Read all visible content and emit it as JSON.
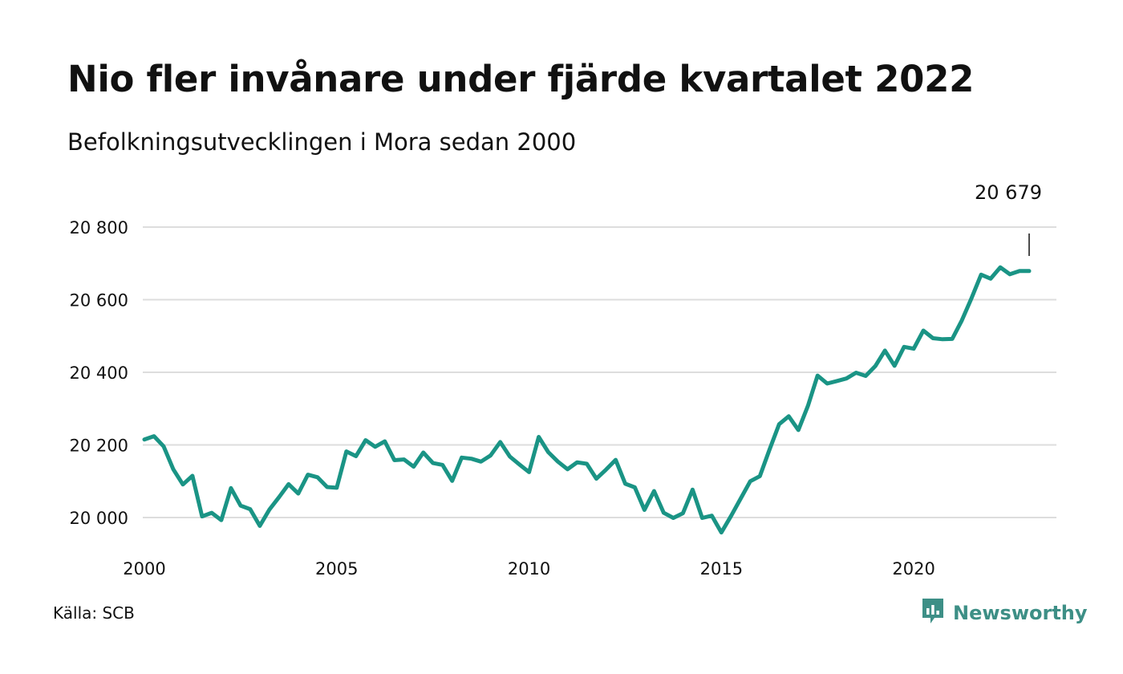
{
  "header": {
    "title": "Nio fler invånare under fjärde kvartalet 2022",
    "subtitle": "Befolkningsutvecklingen i Mora sedan 2000"
  },
  "footer": {
    "source": "Källa: SCB",
    "brand": "Newsworthy"
  },
  "colors": {
    "line": "#1a9485",
    "grid": "#dddddd",
    "brand": "#3d8f86"
  },
  "icons": {
    "brand_logo": "bar-chart-speech-bubble-icon"
  },
  "chart_data": {
    "type": "line",
    "title": "Nio fler invånare under fjärde kvartalet 2022",
    "subtitle": "Befolkningsutvecklingen i Mora sedan 2000",
    "xlabel": "",
    "ylabel": "",
    "xlim": [
      2000,
      2023.75
    ],
    "ylim": [
      19920,
      20800
    ],
    "grid": true,
    "x_ticks": [
      2000,
      2005,
      2010,
      2015,
      2020
    ],
    "x_tick_labels": [
      "2000",
      "2005",
      "2010",
      "2015",
      "2020"
    ],
    "y_ticks": [
      20000,
      20200,
      20400,
      20600,
      20800
    ],
    "y_tick_labels": [
      "20 000",
      "20 200",
      "20 400",
      "20 600",
      "20 800"
    ],
    "annotation": {
      "x": 2023,
      "value": 20679,
      "label": "20 679"
    },
    "series": [
      {
        "x": [
          2000.0,
          2000.25,
          2000.5,
          2000.75,
          2001.0,
          2001.25,
          2001.5,
          2001.75,
          2002.0,
          2002.25,
          2002.5,
          2002.75,
          2003.0,
          2003.25,
          2003.5,
          2003.75,
          2004.0,
          2004.25,
          2004.5,
          2004.75,
          2005.0,
          2005.25,
          2005.5,
          2005.75,
          2006.0,
          2006.25,
          2006.5,
          2006.75,
          2007.0,
          2007.25,
          2007.5,
          2007.75,
          2008.0,
          2008.25,
          2008.5,
          2008.75,
          2009.0,
          2009.25,
          2009.5,
          2009.75,
          2010.0,
          2010.25,
          2010.5,
          2010.75,
          2011.0,
          2011.25,
          2011.5,
          2011.75,
          2012.0,
          2012.25,
          2012.5,
          2012.75,
          2013.0,
          2013.25,
          2013.5,
          2013.75,
          2014.0,
          2014.25,
          2014.5,
          2014.75,
          2015.0,
          2015.25,
          2015.5,
          2015.75,
          2016.0,
          2016.25,
          2016.5,
          2016.75,
          2017.0,
          2017.25,
          2017.5,
          2017.75,
          2018.0,
          2018.25,
          2018.5,
          2018.75,
          2019.0,
          2019.25,
          2019.5,
          2019.75,
          2020.0,
          2020.25,
          2020.5,
          2020.75,
          2021.0,
          2021.25,
          2021.5,
          2021.75,
          2022.0,
          2022.25,
          2022.5,
          2022.75,
          2023.0
        ],
        "values": [
          20215,
          20224,
          20196,
          20133,
          20091,
          20115,
          20003,
          20013,
          19993,
          20081,
          20033,
          20023,
          19977,
          20022,
          20056,
          20092,
          20066,
          20118,
          20111,
          20084,
          20082,
          20182,
          20169,
          20213,
          20195,
          20210,
          20158,
          20160,
          20140,
          20179,
          20150,
          20145,
          20101,
          20165,
          20162,
          20154,
          20171,
          20208,
          20168,
          20146,
          20125,
          20222,
          20180,
          20154,
          20133,
          20152,
          20148,
          20107,
          20132,
          20159,
          20093,
          20083,
          20021,
          20073,
          20013,
          19999,
          20012,
          20077,
          19999,
          20005,
          19959,
          20004,
          20052,
          20100,
          20114,
          20187,
          20257,
          20279,
          20241,
          20308,
          20391,
          20369,
          20376,
          20383,
          20399,
          20390,
          20417,
          20460,
          20418,
          20470,
          20465,
          20515,
          20494,
          20491,
          20492,
          20543,
          20604,
          20669,
          20658,
          20689,
          20670,
          20679,
          20679
        ]
      }
    ]
  }
}
